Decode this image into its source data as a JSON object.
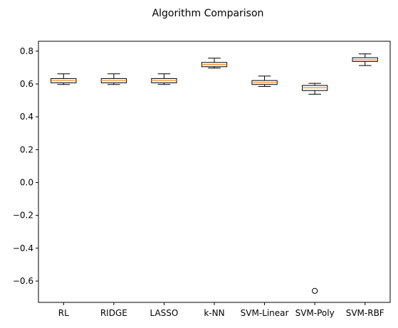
{
  "chart_data": {
    "type": "box",
    "title": "Algorithm Comparison",
    "xlabel": "",
    "ylabel": "",
    "ylim": [
      -0.73,
      0.86
    ],
    "yticks": [
      -0.6,
      -0.4,
      -0.2,
      0.0,
      0.2,
      0.4,
      0.6,
      0.8
    ],
    "ytick_labels": [
      "−0.6",
      "−0.4",
      "−0.2",
      "0.0",
      "0.2",
      "0.4",
      "0.6",
      "0.8"
    ],
    "categories": [
      "RL",
      "RIDGE",
      "LASSO",
      "k-NN",
      "SVM-Linear",
      "SVM-Poly",
      "SVM-RBF"
    ],
    "boxes": [
      {
        "label": "RL",
        "whisker_low": 0.597,
        "q1": 0.607,
        "median": 0.621,
        "q3": 0.633,
        "whisker_high": 0.662,
        "outliers": []
      },
      {
        "label": "RIDGE",
        "whisker_low": 0.597,
        "q1": 0.607,
        "median": 0.621,
        "q3": 0.633,
        "whisker_high": 0.662,
        "outliers": []
      },
      {
        "label": "LASSO",
        "whisker_low": 0.597,
        "q1": 0.607,
        "median": 0.621,
        "q3": 0.633,
        "whisker_high": 0.662,
        "outliers": []
      },
      {
        "label": "k-NN",
        "whisker_low": 0.697,
        "q1": 0.705,
        "median": 0.718,
        "q3": 0.731,
        "whisker_high": 0.757,
        "outliers": []
      },
      {
        "label": "SVM-Linear",
        "whisker_low": 0.585,
        "q1": 0.597,
        "median": 0.609,
        "q3": 0.621,
        "whisker_high": 0.648,
        "outliers": []
      },
      {
        "label": "SVM-Poly",
        "whisker_low": 0.538,
        "q1": 0.56,
        "median": 0.577,
        "q3": 0.591,
        "whisker_high": 0.604,
        "outliers": [
          -0.66
        ]
      },
      {
        "label": "SVM-RBF",
        "whisker_low": 0.712,
        "q1": 0.737,
        "median": 0.747,
        "q3": 0.76,
        "whisker_high": 0.783,
        "outliers": []
      }
    ],
    "grid": false,
    "legend": "none",
    "colors": {
      "box": "#000000",
      "median": "#ff7f0e",
      "whisker": "#000000",
      "outlier": "#000000",
      "axes": "#000000"
    }
  }
}
